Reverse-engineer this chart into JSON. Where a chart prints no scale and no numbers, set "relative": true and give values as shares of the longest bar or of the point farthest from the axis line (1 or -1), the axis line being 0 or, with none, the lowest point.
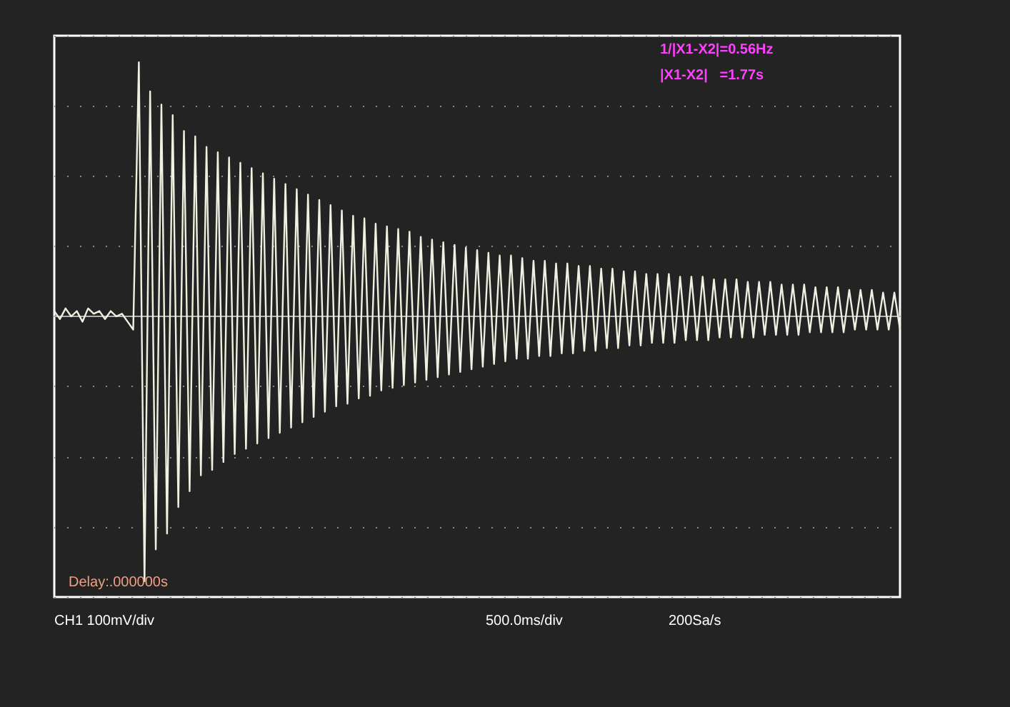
{
  "chart_data": {
    "type": "line",
    "relative": true,
    "categories": [
      null,
      null,
      null,
      null,
      null,
      null,
      null,
      null,
      null,
      null,
      null,
      null,
      null,
      null,
      null,
      null,
      null,
      null,
      null,
      null,
      null,
      null,
      null,
      null,
      null,
      null,
      null,
      null,
      null,
      null,
      null,
      null,
      null,
      null,
      null,
      null,
      null,
      null,
      null,
      null,
      null,
      null,
      null,
      null,
      null,
      null,
      null,
      null,
      null,
      null,
      null,
      null,
      null,
      null,
      null,
      null,
      null,
      null,
      null,
      null,
      null,
      null,
      null,
      null,
      null,
      null,
      null,
      null,
      null,
      null,
      null,
      null,
      null,
      null,
      null,
      null,
      null,
      null,
      null,
      null,
      null,
      null,
      null,
      null,
      null,
      null,
      null,
      null,
      null,
      null,
      null,
      null,
      null,
      null,
      null,
      null,
      null,
      null,
      null,
      null,
      null,
      null,
      null,
      null,
      null,
      null,
      null,
      null,
      null,
      null,
      null,
      null,
      null,
      null,
      null,
      null,
      null,
      null,
      null,
      null,
      null,
      null,
      null,
      null,
      null,
      null,
      null,
      null,
      null,
      null,
      null,
      null,
      null,
      null,
      null,
      null,
      null,
      null,
      null,
      null,
      null,
      null,
      null,
      null,
      null,
      null,
      null,
      null,
      null,
      null,
      null
    ],
    "series": [
      {
        "color": "#f0f0e0",
        "values": [
          0.02,
          -0.01,
          0.03,
          0,
          0.02,
          -0.02,
          0.03,
          0.01,
          0.02,
          -0.01,
          0.02,
          0,
          0.01,
          -0.02,
          -0.05,
          0.96,
          -1,
          0.85,
          -0.88,
          0.8,
          -0.82,
          0.76,
          -0.72,
          0.7,
          -0.66,
          0.68,
          -0.6,
          0.64,
          -0.58,
          0.62,
          -0.55,
          0.6,
          -0.52,
          0.58,
          -0.5,
          0.56,
          -0.48,
          0.54,
          -0.46,
          0.52,
          -0.44,
          0.5,
          -0.42,
          0.48,
          -0.4,
          0.46,
          -0.38,
          0.44,
          -0.36,
          0.42,
          -0.34,
          0.4,
          -0.33,
          0.38,
          -0.31,
          0.37,
          -0.3,
          0.35,
          -0.28,
          0.34,
          -0.27,
          0.33,
          -0.26,
          0.32,
          -0.25,
          0.3,
          -0.24,
          0.29,
          -0.23,
          0.28,
          -0.22,
          0.27,
          -0.21,
          0.26,
          -0.2,
          0.25,
          -0.19,
          0.24,
          -0.18,
          0.23,
          -0.17,
          0.23,
          -0.16,
          0.22,
          -0.16,
          0.21,
          -0.15,
          0.21,
          -0.15,
          0.2,
          -0.14,
          0.2,
          -0.14,
          0.19,
          -0.13,
          0.19,
          -0.13,
          0.18,
          -0.12,
          0.18,
          -0.12,
          0.17,
          -0.11,
          0.17,
          -0.11,
          0.16,
          -0.1,
          0.16,
          -0.1,
          0.16,
          -0.1,
          0.15,
          -0.09,
          0.15,
          -0.09,
          0.15,
          -0.09,
          0.14,
          -0.08,
          0.14,
          -0.08,
          0.14,
          -0.08,
          0.13,
          -0.08,
          0.13,
          -0.07,
          0.13,
          -0.07,
          0.12,
          -0.07,
          0.12,
          -0.07,
          0.12,
          -0.06,
          0.11,
          -0.06,
          0.11,
          -0.06,
          0.11,
          -0.06,
          0.1,
          -0.05,
          0.1,
          -0.05,
          0.1,
          -0.05,
          0.09,
          -0.05,
          0.09,
          -0.05
        ]
      }
    ],
    "annotations": [
      "1/|X1-X2|=0.56Hz",
      "|X1-X2|   =1.77s",
      "Delay:.000000s",
      "CH1 100mV/div",
      "500.0ms/div",
      "200Sa/s"
    ],
    "grid": "y",
    "marker": "none",
    "line_style": "solid"
  }
}
